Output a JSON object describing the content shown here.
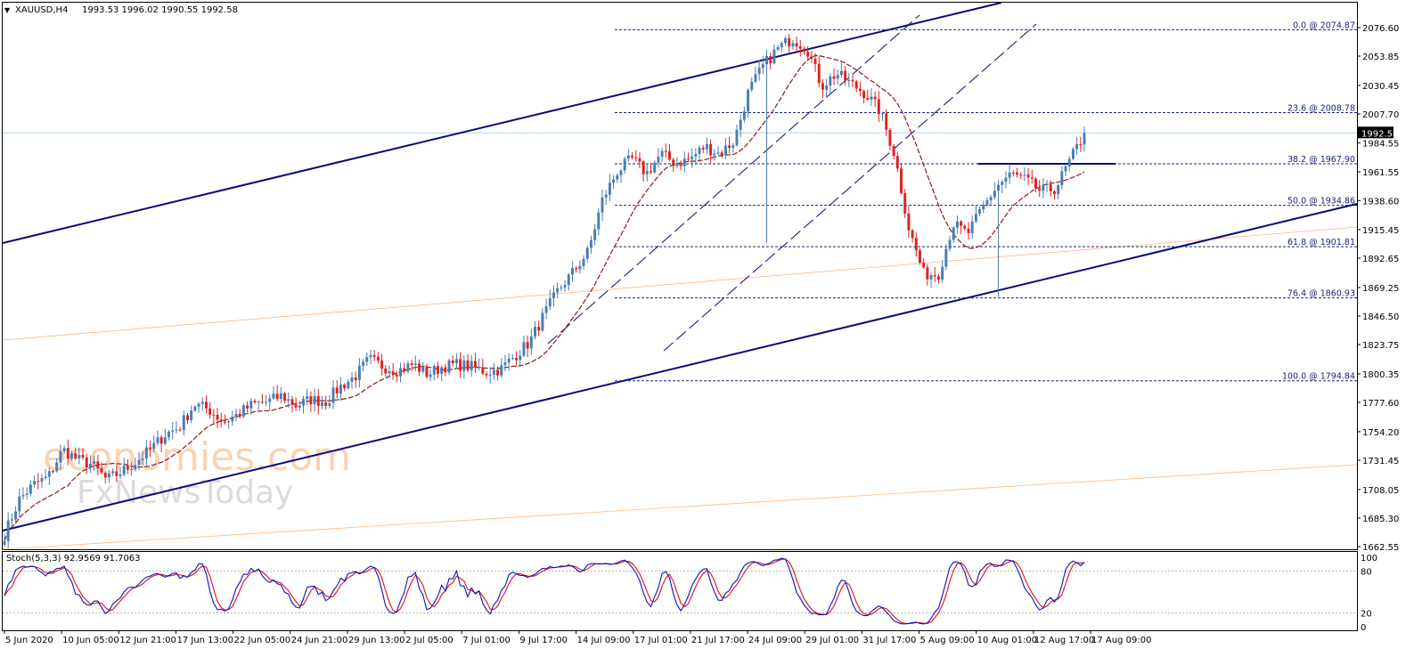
{
  "header": {
    "menu_glyph": "▼",
    "title": "XAUUSD,H4",
    "ohlc": "1993.53 1996.02 1990.55 1992.58"
  },
  "current_price_label": "1992.58",
  "watermark": {
    "brand": "economies.com",
    "sub": "FxNewsToday"
  },
  "colors": {
    "bull": "#4a7cb3",
    "bear": "#e02020",
    "channel": "#0a0a7a",
    "fib": "#1a237e",
    "ma": "#8b1a1a",
    "stoch_main": "#1010c0",
    "stoch_signal": "#e01010",
    "price_line": "#a8d8e8",
    "fan": "#ffb880"
  },
  "chart_data": {
    "type": "candlestick",
    "symbol": "XAUUSD",
    "timeframe": "H4",
    "price_axis_ticks": [
      "2076.60",
      "2053.85",
      "2030.45",
      "2007.70",
      "1984.55",
      "1961.55",
      "1938.60",
      "1915.45",
      "1892.65",
      "1869.25",
      "1846.50",
      "1823.75",
      "1800.35",
      "1777.60",
      "1754.20",
      "1731.45",
      "1708.05",
      "1685.30",
      "1662.55"
    ],
    "time_axis_labels": [
      "5 Jun 2020",
      "10 Jun 05:00",
      "12 Jun 21:00",
      "17 Jun 13:00",
      "22 Jun 05:00",
      "24 Jun 21:00",
      "29 Jun 13:00",
      "2 Jul 05:00",
      "7 Jul 01:00",
      "9 Jul 17:00",
      "14 Jul 09:00",
      "17 Jul 01:00",
      "21 Jul 17:00",
      "24 Jul 09:00",
      "29 Jul 01:00",
      "31 Jul 17:00",
      "5 Aug 09:00",
      "10 Aug 01:00",
      "12 Aug 17:00",
      "17 Aug 09:00"
    ],
    "price_range": [
      1655,
      2098
    ],
    "close_path": [
      1672,
      1700,
      1712,
      1718,
      1740,
      1732,
      1728,
      1716,
      1722,
      1730,
      1740,
      1752,
      1758,
      1776,
      1772,
      1762,
      1768,
      1776,
      1778,
      1783,
      1775,
      1780,
      1778,
      1790,
      1798,
      1812,
      1806,
      1803,
      1808,
      1800,
      1806,
      1808,
      1806,
      1802,
      1804,
      1815,
      1826,
      1848,
      1868,
      1882,
      1898,
      1940,
      1962,
      1972,
      1960,
      1976,
      1968,
      1972,
      1982,
      1976,
      1986,
      2026,
      2046,
      2060,
      2068,
      2060,
      2030,
      2040,
      2032,
      2024,
      2010,
      1975,
      1915,
      1880,
      1880,
      1920,
      1912,
      1932,
      1950,
      1960,
      1955,
      1946,
      1948,
      1970,
      1992
    ],
    "fibonacci_levels": [
      {
        "ratio": "0.0",
        "price": "2074.87",
        "label": "0.0 @ 2074.87"
      },
      {
        "ratio": "23.6",
        "price": "2008.78",
        "label": "23.6 @ 2008.78"
      },
      {
        "ratio": "38.2",
        "price": "1967.90",
        "label": "38.2 @ 1967.90"
      },
      {
        "ratio": "50.0",
        "price": "1934.86",
        "label": "50.0 @ 1934.86"
      },
      {
        "ratio": "61.8",
        "price": "1901.81",
        "label": "61.8 @ 1901.81"
      },
      {
        "ratio": "76.4",
        "price": "1860.93",
        "label": "76.4 @ 1860.93"
      },
      {
        "ratio": "100.0",
        "price": "1794.84",
        "label": "100.0 @ 1794.84"
      }
    ],
    "current_price": 1992.58,
    "stochastic": {
      "title": "Stoch(5,3,3) 92.9569 91.7063",
      "params": "5,3,3",
      "main_value": 92.9569,
      "signal_value": 91.7063,
      "levels": [
        20,
        80
      ],
      "axis_ticks": [
        "100",
        "80",
        "20",
        "0"
      ],
      "range": [
        0,
        100
      ]
    }
  }
}
